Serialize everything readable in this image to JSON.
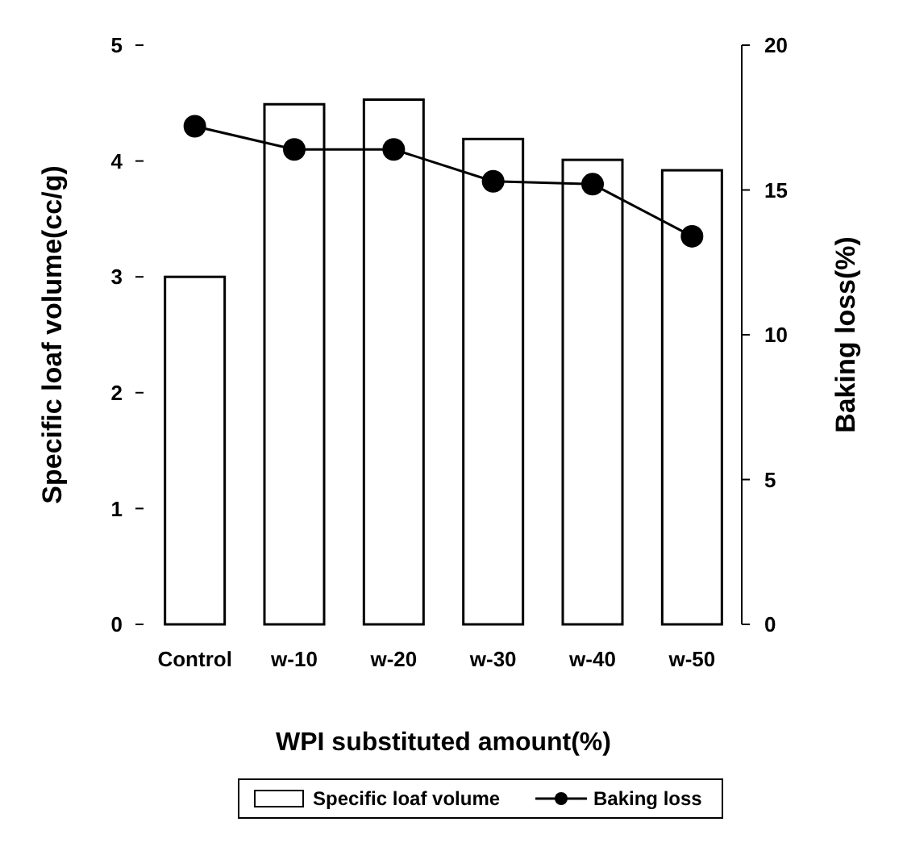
{
  "chart_data": {
    "type": "bar",
    "xlabel": "WPI substituted amount(%)",
    "ylabel": "Specific loaf volume(cc/g)",
    "y2label": "Baking loss(%)",
    "categories": [
      "Control",
      "w-10",
      "w-20",
      "w-30",
      "w-40",
      "w-50"
    ],
    "series": [
      {
        "name": "Specific loaf volume",
        "color": "#ffffff",
        "values": [
          3.0,
          4.49,
          4.53,
          4.19,
          4.01,
          3.92
        ]
      },
      {
        "name": "Baking loss",
        "type": "line",
        "axis": "y2",
        "color": "#000000",
        "marker": "circle",
        "values": [
          17.2,
          16.4,
          16.4,
          15.3,
          15.2,
          13.4
        ]
      }
    ],
    "ylim": [
      0,
      5
    ],
    "yticks": [
      0,
      1,
      2,
      3,
      4,
      5
    ],
    "y2lim": [
      0,
      20
    ],
    "y2ticks": [
      0,
      5,
      10,
      15,
      20
    ],
    "legend": "bottom",
    "grid": false
  }
}
